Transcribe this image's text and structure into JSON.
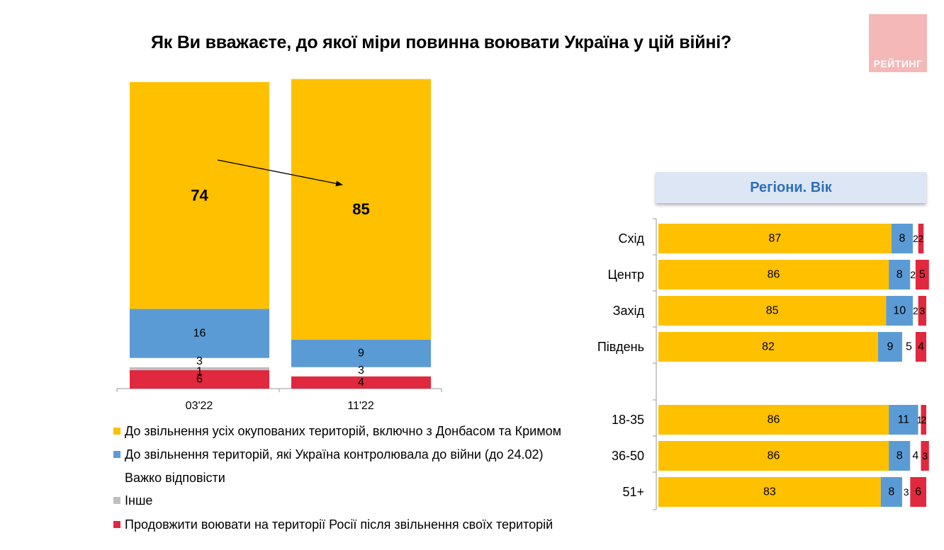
{
  "title": "Як Ви вважаєте, до якої міри повинна воювати Україна у цій війні?",
  "logo_text": "РЕЙТИНГ",
  "panel_title": "Регіони. Вік",
  "colors": {
    "liberate_all": "#ffc000",
    "liberate_pre_war": "#5b9bd5",
    "hard_to_say": "#ffffff",
    "other": "#bfbfbf",
    "fight_in_russia": "#e0283e",
    "panel_title": "#2e6fb6",
    "panel_bg": "#dde6f4",
    "logo_bg": "#f4b8b8"
  },
  "legend": [
    {
      "key": "liberate_all",
      "label": "До звільнення усіх окупованих територій, включно з Донбасом та Кримом",
      "color": "#ffc000"
    },
    {
      "key": "liberate_pre_war",
      "label": "До звільнення територій, які Україна контролювала до війни (до 24.02)",
      "color": "#5b9bd5"
    },
    {
      "key": "hard_to_say",
      "label": "Важко відповісти",
      "color": "#ffffff"
    },
    {
      "key": "other",
      "label": "Інше",
      "color": "#bfbfbf"
    },
    {
      "key": "fight_in_russia",
      "label": "Продовжити воювати на території Росії після звільнення своїх територій",
      "color": "#e0283e"
    }
  ],
  "chart_data": [
    {
      "type": "bar",
      "orientation": "vertical",
      "stacked": true,
      "categories": [
        "03'22",
        "11'22"
      ],
      "series": [
        {
          "name": "До звільнення усіх окупованих територій, включно з Донбасом та Кримом",
          "values": [
            74,
            85
          ]
        },
        {
          "name": "До звільнення територій, які Україна контролювала до війни (до 24.02)",
          "values": [
            16,
            9
          ]
        },
        {
          "name": "Важко відповісти",
          "values": [
            3,
            3
          ]
        },
        {
          "name": "Інше",
          "values": [
            1,
            0
          ]
        },
        {
          "name": "Продовжити воювати на території Росії після звільнення своїх територій",
          "values": [
            6,
            4
          ]
        }
      ],
      "ylim": [
        0,
        100
      ],
      "annotation": "arrow from 74 to 85"
    },
    {
      "type": "bar",
      "orientation": "horizontal",
      "stacked": true,
      "title": "Регіони. Вік",
      "categories": [
        "Схід",
        "Центр",
        "Захід",
        "Південь",
        "18-35",
        "36-50",
        "51+"
      ],
      "series": [
        {
          "name": "До звільнення усіх окупованих територій, включно з Донбасом та Кримом",
          "values": [
            87,
            86,
            85,
            82,
            86,
            86,
            83
          ]
        },
        {
          "name": "До звільнення територій, які Україна контролювала до війни (до 24.02)",
          "values": [
            8,
            8,
            10,
            9,
            11,
            8,
            8
          ]
        },
        {
          "name": "Важко відповісти",
          "values": [
            2,
            2,
            2,
            5,
            1,
            4,
            3
          ]
        },
        {
          "name": "Продовжити воювати на території Росії після звільнення своїх територій",
          "values": [
            2,
            5,
            3,
            4,
            2,
            3,
            6
          ]
        }
      ],
      "xlim": [
        0,
        100
      ]
    }
  ]
}
